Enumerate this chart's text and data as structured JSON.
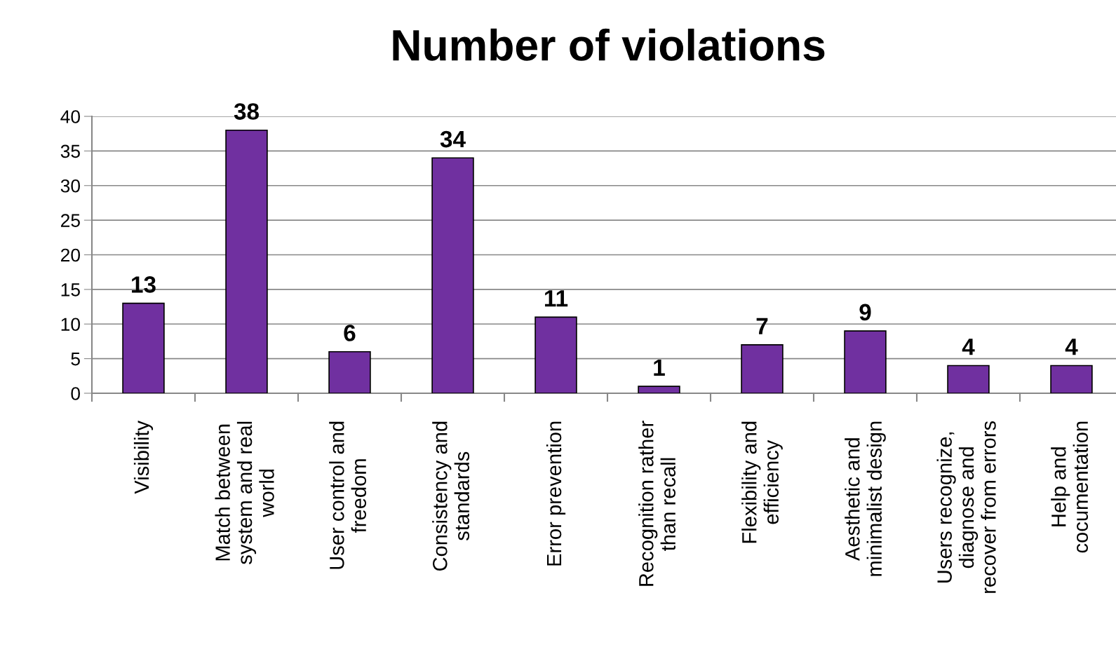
{
  "chart_data": {
    "type": "bar",
    "title": "Number of violations",
    "categories": [
      "Visibility",
      "Match between\nsystem and real\nworld",
      "User control and\nfreedom",
      "Consistency and\nstandards",
      "Error prevention",
      "Recognition rather\nthan recall",
      "Flexibility and\nefficiency",
      "Aesthetic and\nminimalist design",
      "Users recognize,\ndiagnose and\nrecover from errors",
      "Help and\ncocumentation"
    ],
    "values": [
      13,
      38,
      6,
      34,
      11,
      1,
      7,
      9,
      4,
      4
    ],
    "color": "#7030a0",
    "ylim": [
      0,
      40
    ],
    "yticks": [
      0,
      5,
      10,
      15,
      20,
      25,
      30,
      35,
      40
    ],
    "grid": "y",
    "data_labels": true,
    "legend": false
  }
}
